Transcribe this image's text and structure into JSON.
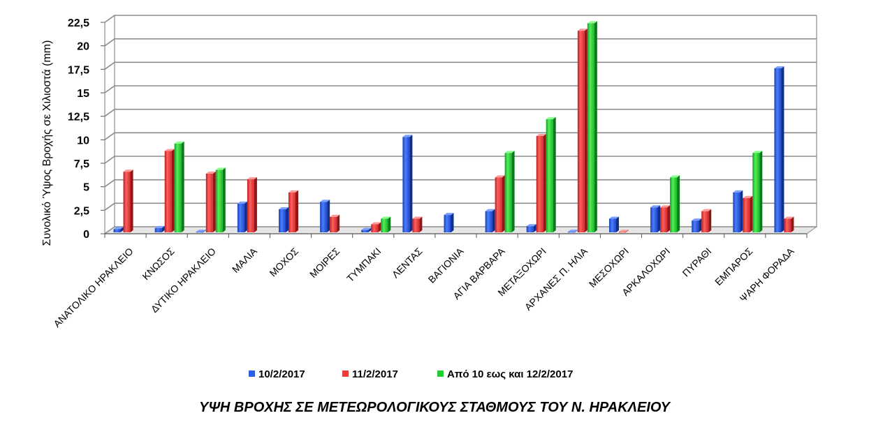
{
  "chart_data": {
    "type": "bar",
    "title": "ΥΨΗ ΒΡΟΧΗΣ ΣΕ ΜΕΤΕΩΡΟΛΟΓΙΚΟΥΣ ΣΤΑΘΜΟΥΣ ΤΟΥ Ν. ΗΡΑΚΛΕΙΟΥ",
    "xlabel": "",
    "ylabel": "Συνολικό Ύψος Βροχής σε Χιλιοστά (mm)",
    "ylim": [
      0,
      22.5
    ],
    "yticks": [
      "0",
      "2,5",
      "5",
      "7,5",
      "10",
      "12,5",
      "15",
      "17,5",
      "20",
      "22,5"
    ],
    "ytick_values": [
      0,
      2.5,
      5,
      7.5,
      10,
      12.5,
      15,
      17.5,
      20,
      22.5
    ],
    "grid": true,
    "legend_position": "bottom",
    "categories": [
      "ΑΝΑΤΟΛΙΚΟ ΗΡΑΚΛΕΙΟ",
      "ΚΝΩΣΟΣ",
      "ΔΥΤΙΚΟ ΗΡΑΚΛΕΙΟ",
      "ΜΑΛΙΑ",
      "ΜΟΧΟΣ",
      "ΜΟΙΡΕΣ",
      "ΤΥΜΠΑΚΙ",
      "ΛΕΝΤΑΣ",
      "ΒΑΓΙΟΝΙΑ",
      "ΑΓΙΑ ΒΑΡΒΑΡΑ",
      "ΜΕΤΑΞΟΧΩΡΙ",
      "ΑΡΧΑΝΕΣ Π. ΗΛΙΑ",
      "ΜΕΣΟΧΩΡΙ",
      "ΑΡΚΑΛΟΧΩΡΙ",
      "ΠΥΡΑΘΙ",
      "ΕΜΠΑΡΟΣ",
      "ΨΑΡΗ ΦΟΡΑΔΑ"
    ],
    "series": [
      {
        "name": "10/2/2017",
        "color": "#2a5ee8",
        "values": [
          0.5,
          0.6,
          0.2,
          3.2,
          2.6,
          3.4,
          0.4,
          10.3,
          2.0,
          2.4,
          0.8,
          0.2,
          1.6,
          2.8,
          1.4,
          4.4,
          17.6
        ]
      },
      {
        "name": "11/2/2017",
        "color": "#ee3b3b",
        "values": [
          6.6,
          8.8,
          6.4,
          5.8,
          4.4,
          1.8,
          1.0,
          1.6,
          0.0,
          6.0,
          10.4,
          21.6,
          0.2,
          2.8,
          2.4,
          3.8,
          1.6
        ]
      },
      {
        "name": "Από 10 εως και 12/2/2017",
        "color": "#22cc33",
        "values": [
          0.0,
          9.6,
          6.8,
          0.0,
          0.0,
          0.0,
          1.6,
          0.0,
          0.0,
          8.6,
          12.2,
          22.4,
          0.0,
          6.0,
          0.0,
          8.6,
          0.0
        ]
      }
    ]
  }
}
